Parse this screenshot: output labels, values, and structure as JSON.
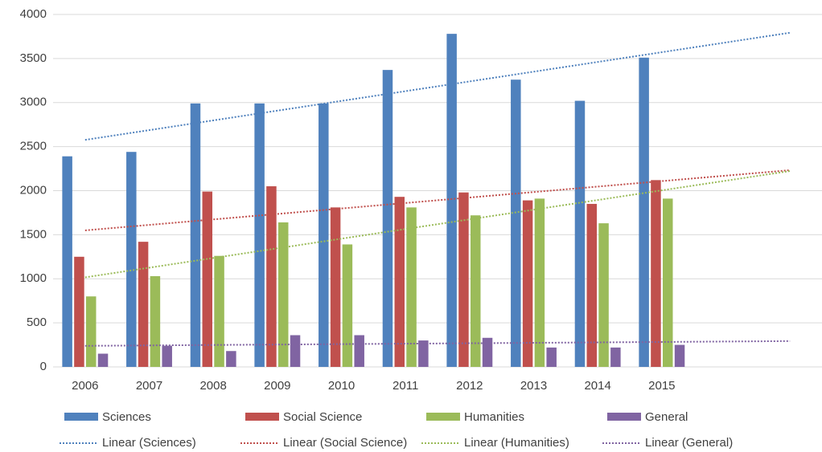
{
  "chart_data": {
    "type": "bar",
    "categories": [
      "2006",
      "2007",
      "2008",
      "2009",
      "2010",
      "2011",
      "2012",
      "2013",
      "2014",
      "2015",
      null,
      null
    ],
    "series": [
      {
        "name": "Sciences",
        "color": "#4f81bd",
        "values": [
          2390,
          2440,
          2990,
          2990,
          2990,
          3370,
          3780,
          3260,
          3020,
          3510,
          null,
          null
        ]
      },
      {
        "name": "Social Science",
        "color": "#c0504d",
        "values": [
          1250,
          1420,
          1990,
          2050,
          1810,
          1930,
          1980,
          1890,
          1850,
          2120,
          null,
          null
        ]
      },
      {
        "name": "Humanities",
        "color": "#9bbb59",
        "values": [
          800,
          1030,
          1260,
          1640,
          1390,
          1810,
          1720,
          1910,
          1630,
          1910,
          null,
          null
        ]
      },
      {
        "name": "General",
        "color": "#8064a2",
        "values": [
          150,
          240,
          180,
          360,
          360,
          300,
          330,
          220,
          220,
          250,
          null,
          null
        ]
      }
    ],
    "trendlines": [
      {
        "name": "Linear (Sciences)",
        "color": "#4f81bd"
      },
      {
        "name": "Linear (Social Science)",
        "color": "#c0504d"
      },
      {
        "name": "Linear (Humanities)",
        "color": "#9bbb59"
      },
      {
        "name": "Linear (General)",
        "color": "#8064a2"
      }
    ],
    "ylim": [
      0,
      4000
    ],
    "yticks": [
      0,
      500,
      1000,
      1500,
      2000,
      2500,
      3000,
      3500,
      4000
    ],
    "grid": true
  }
}
